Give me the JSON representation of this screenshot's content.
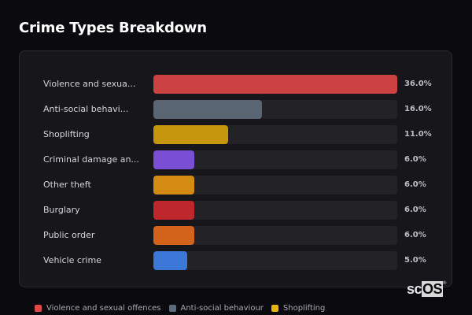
{
  "title": "Crime Types Breakdown",
  "chart_data": {
    "type": "bar",
    "orientation": "horizontal",
    "title": "Crime Types Breakdown",
    "categories": [
      "Violence and sexual offences",
      "Anti-social behaviour",
      "Shoplifting",
      "Criminal damage and arson",
      "Other theft",
      "Burglary",
      "Public order",
      "Vehicle crime"
    ],
    "display_labels": [
      "Violence and sexua...",
      "Anti-social behavi...",
      "Shoplifting",
      "Criminal damage an...",
      "Other theft",
      "Burglary",
      "Public order",
      "Vehicle crime"
    ],
    "values": [
      36.0,
      16.0,
      11.0,
      6.0,
      6.0,
      6.0,
      6.0,
      5.0
    ],
    "value_labels": [
      "36.0%",
      "16.0%",
      "11.0%",
      "6.0%",
      "6.0%",
      "6.0%",
      "6.0%",
      "5.0%"
    ],
    "colors": [
      "#cc4242",
      "#5a6574",
      "#c7960f",
      "#7a4fd6",
      "#d38b14",
      "#be272c",
      "#d3621b",
      "#3b78d8"
    ],
    "xlim": [
      0,
      36
    ],
    "grid": false,
    "legend_position": "bottom"
  },
  "rows": [
    {
      "label": "Violence and sexua...",
      "value": "36.0%",
      "pct": 100,
      "color": "#cc4242"
    },
    {
      "label": "Anti-social behavi...",
      "value": "16.0%",
      "pct": 44.4,
      "color": "#5a6574"
    },
    {
      "label": "Shoplifting",
      "value": "11.0%",
      "pct": 30.6,
      "color": "#c7960f"
    },
    {
      "label": "Criminal damage an...",
      "value": "6.0%",
      "pct": 16.7,
      "color": "#7a4fd6"
    },
    {
      "label": "Other theft",
      "value": "6.0%",
      "pct": 16.7,
      "color": "#d38b14"
    },
    {
      "label": "Burglary",
      "value": "6.0%",
      "pct": 16.7,
      "color": "#be272c"
    },
    {
      "label": "Public order",
      "value": "6.0%",
      "pct": 16.7,
      "color": "#d3621b"
    },
    {
      "label": "Vehicle crime",
      "value": "5.0%",
      "pct": 13.9,
      "color": "#3b78d8"
    }
  ],
  "legend": [
    {
      "label": "Violence and sexual offences",
      "color": "#e04848"
    },
    {
      "label": "Anti-social behaviour",
      "color": "#5d6b7e"
    },
    {
      "label": "Shoplifting",
      "color": "#e8b40e"
    }
  ],
  "logo": {
    "sc": "sc",
    "os": "OS",
    "mark": "®"
  }
}
